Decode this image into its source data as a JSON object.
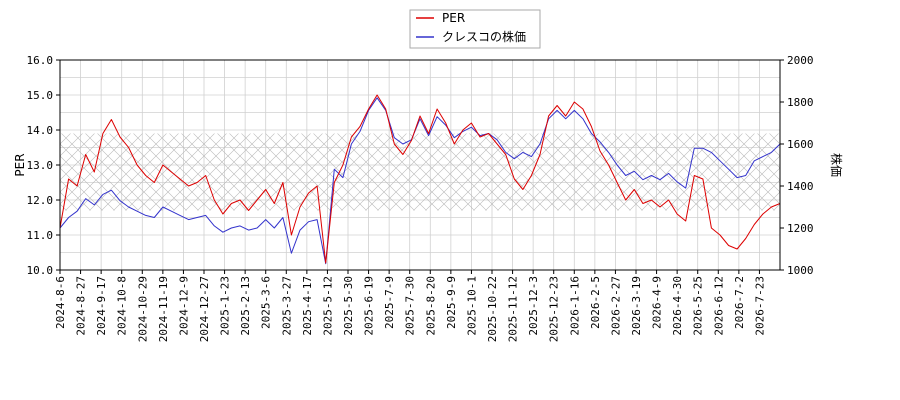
{
  "chart_data": {
    "type": "line",
    "xlabel": "",
    "ylabel_left": "PER",
    "ylabel_right": "株価",
    "x_tick_labels": [
      "2024-8-6",
      "2024-8-27",
      "2024-9-17",
      "2024-10-8",
      "2024-10-29",
      "2024-11-19",
      "2024-12-9",
      "2024-12-27",
      "2025-1-23",
      "2025-2-13",
      "2025-3-6",
      "2025-3-27",
      "2025-4-17",
      "2025-5-12",
      "2025-5-30",
      "2025-6-19",
      "2025-7-9",
      "2025-7-30",
      "2025-8-20",
      "2025-9-9",
      "2025-10-1",
      "2025-10-22",
      "2025-11-12",
      "2025-12-3",
      "2025-12-23",
      "2026-1-16",
      "2026-2-5",
      "2026-2-27",
      "2026-3-19",
      "2026-4-9",
      "2026-4-30",
      "2026-5-25",
      "2026-6-12",
      "2026-7-2",
      "2026-7-23"
    ],
    "ylim_left": [
      10.0,
      16.0
    ],
    "ylim_right": [
      1000,
      2000
    ],
    "y_ticks_left": [
      "10.0",
      "11.0",
      "12.0",
      "13.0",
      "14.0",
      "15.0",
      "16.0"
    ],
    "y_ticks_right": [
      "1000",
      "1200",
      "1400",
      "1600",
      "1800",
      "2000"
    ],
    "grid": true,
    "legend_position": "top-center",
    "band": {
      "from": 11.7,
      "to": 13.9,
      "axis": "left",
      "pattern": "crosshatch"
    },
    "series": [
      {
        "name": "PER",
        "axis": "left",
        "color": "#dd0000",
        "values": [
          11.2,
          12.6,
          12.4,
          13.3,
          12.8,
          13.9,
          14.3,
          13.8,
          13.5,
          13.0,
          12.7,
          12.5,
          13.0,
          12.8,
          12.6,
          12.4,
          12.5,
          12.7,
          12.0,
          11.6,
          11.9,
          12.0,
          11.7,
          12.0,
          12.3,
          11.9,
          12.5,
          11.0,
          11.8,
          12.2,
          12.4,
          10.2,
          12.5,
          13.0,
          13.8,
          14.1,
          14.6,
          15.0,
          14.6,
          13.6,
          13.3,
          13.7,
          14.4,
          13.9,
          14.6,
          14.2,
          13.6,
          14.0,
          14.2,
          13.8,
          13.9,
          13.6,
          13.3,
          12.6,
          12.3,
          12.7,
          13.3,
          14.4,
          14.7,
          14.4,
          14.8,
          14.6,
          14.1,
          13.4,
          13.0,
          12.5,
          12.0,
          12.3,
          11.9,
          12.0,
          11.8,
          12.0,
          11.6,
          11.4,
          12.7,
          12.6,
          11.2,
          11.0,
          10.7,
          10.6,
          10.9,
          11.3,
          11.6,
          11.8,
          11.9
        ]
      },
      {
        "name": "クレスコの株価",
        "axis": "right",
        "color": "#3333cc",
        "values": [
          1200,
          1250,
          1280,
          1340,
          1310,
          1360,
          1380,
          1330,
          1300,
          1280,
          1260,
          1250,
          1300,
          1280,
          1260,
          1240,
          1250,
          1260,
          1210,
          1180,
          1200,
          1210,
          1190,
          1200,
          1240,
          1200,
          1250,
          1080,
          1190,
          1230,
          1240,
          1030,
          1480,
          1440,
          1600,
          1660,
          1760,
          1820,
          1760,
          1630,
          1600,
          1620,
          1720,
          1640,
          1730,
          1690,
          1630,
          1660,
          1680,
          1640,
          1650,
          1620,
          1560,
          1530,
          1560,
          1540,
          1600,
          1720,
          1760,
          1720,
          1760,
          1720,
          1650,
          1610,
          1560,
          1500,
          1450,
          1470,
          1430,
          1450,
          1430,
          1460,
          1420,
          1390,
          1580,
          1580,
          1560,
          1520,
          1480,
          1440,
          1450,
          1520,
          1540,
          1560,
          1600
        ]
      }
    ]
  }
}
